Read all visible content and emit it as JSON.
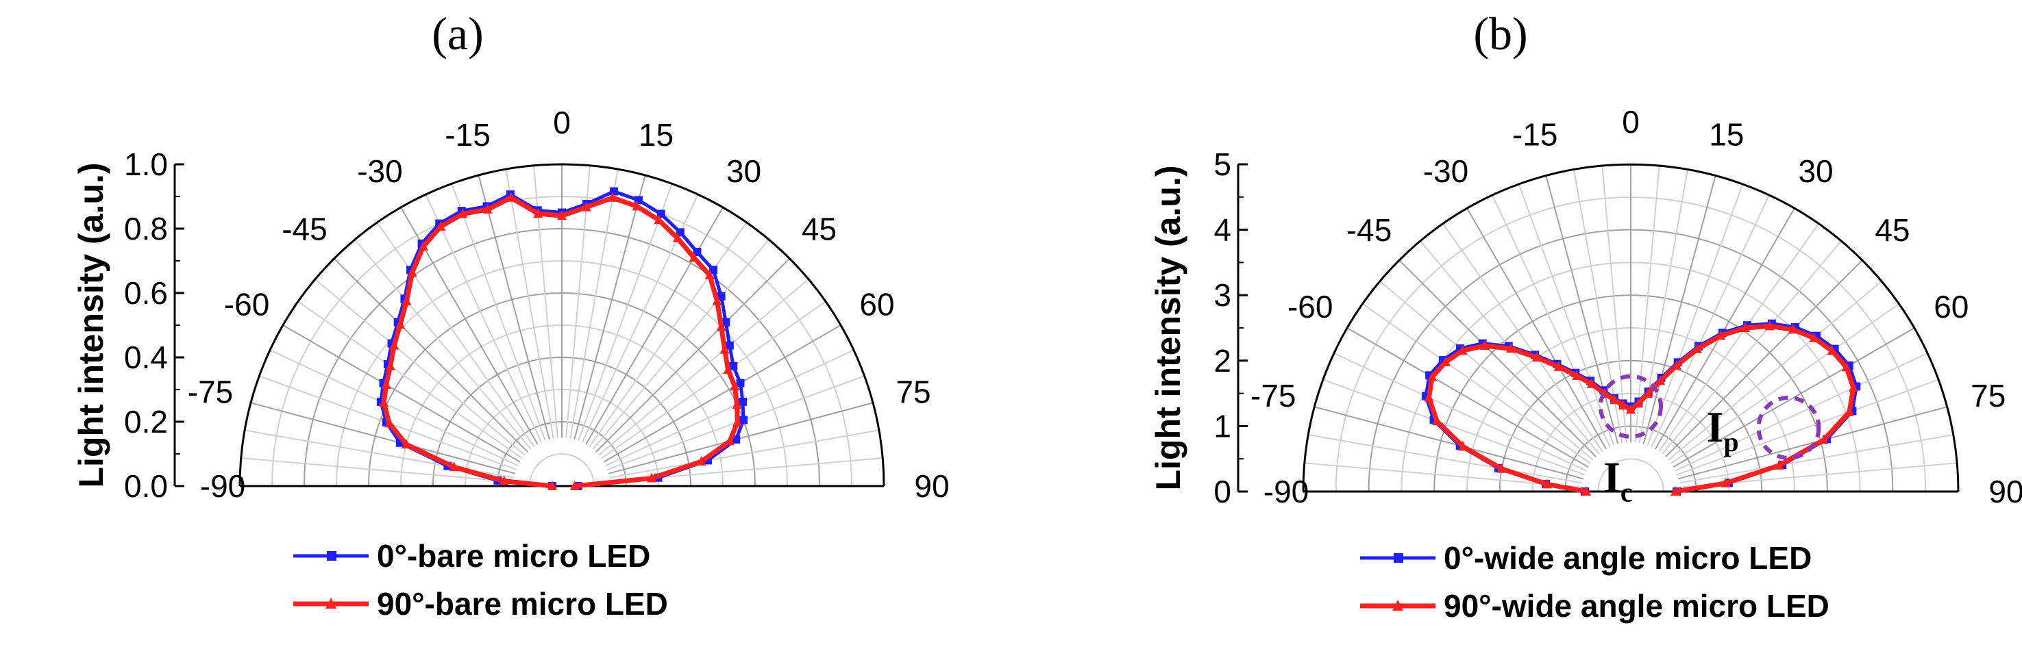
{
  "chart_data": [
    {
      "type": "polar",
      "panel_label": "(a)",
      "ylabel": "Light intensity (a.u.)",
      "radial_ticks": [
        "0.0",
        "0.2",
        "0.4",
        "0.6",
        "0.8",
        "1.0"
      ],
      "rlim": [
        0,
        1.0
      ],
      "angular_ticks": [
        "-90",
        "-75",
        "-60",
        "-45",
        "-30",
        "-15",
        "0",
        "15",
        "30",
        "45",
        "60",
        "75",
        "90"
      ],
      "angle_range_deg": [
        -90,
        90
      ],
      "series": [
        {
          "name": "0°-bare micro LED",
          "color": "#2020ff",
          "marker": "square",
          "angle": [
            -90,
            -85,
            -80,
            -75,
            -70,
            -65,
            -60,
            -55,
            -50,
            -45,
            -40,
            -35,
            -30,
            -25,
            -20,
            -15,
            -10,
            -5,
            0,
            5,
            10,
            15,
            20,
            25,
            30,
            35,
            40,
            45,
            50,
            55,
            60,
            65,
            70,
            75,
            80,
            85,
            90
          ],
          "r": [
            0.03,
            0.2,
            0.36,
            0.52,
            0.58,
            0.62,
            0.64,
            0.66,
            0.69,
            0.72,
            0.76,
            0.82,
            0.87,
            0.9,
            0.91,
            0.9,
            0.92,
            0.86,
            0.85,
            0.88,
            0.93,
            0.92,
            0.9,
            0.87,
            0.84,
            0.82,
            0.77,
            0.72,
            0.68,
            0.65,
            0.64,
            0.62,
            0.6,
            0.56,
            0.46,
            0.3,
            0.05
          ]
        },
        {
          "name": "90°-bare micro LED",
          "color": "#ff2020",
          "marker": "triangle",
          "angle": [
            -90,
            -85,
            -80,
            -75,
            -70,
            -65,
            -60,
            -55,
            -50,
            -45,
            -40,
            -35,
            -30,
            -25,
            -20,
            -15,
            -10,
            -5,
            0,
            5,
            10,
            15,
            20,
            25,
            30,
            35,
            40,
            45,
            50,
            55,
            60,
            65,
            70,
            75,
            80,
            85,
            90
          ],
          "r": [
            0.03,
            0.18,
            0.34,
            0.5,
            0.57,
            0.61,
            0.63,
            0.65,
            0.68,
            0.71,
            0.75,
            0.81,
            0.86,
            0.89,
            0.9,
            0.89,
            0.91,
            0.85,
            0.84,
            0.87,
            0.91,
            0.9,
            0.88,
            0.85,
            0.82,
            0.8,
            0.75,
            0.7,
            0.66,
            0.63,
            0.62,
            0.6,
            0.58,
            0.54,
            0.44,
            0.28,
            0.04
          ]
        }
      ]
    },
    {
      "type": "polar",
      "panel_label": "(b)",
      "ylabel": "Light intensity (a.u.)",
      "radial_ticks": [
        "0",
        "1",
        "2",
        "3",
        "4",
        "5"
      ],
      "rlim": [
        0,
        5
      ],
      "angular_ticks": [
        "-90",
        "-75",
        "-60",
        "-45",
        "-30",
        "-15",
        "0",
        "15",
        "30",
        "45",
        "60",
        "75",
        "90"
      ],
      "angle_range_deg": [
        -90,
        90
      ],
      "annotations": [
        {
          "main": "I",
          "sub": "c",
          "angle": 0,
          "r": 1.3
        },
        {
          "main": "I",
          "sub": "p",
          "angle": 68,
          "r": 2.6
        }
      ],
      "series": [
        {
          "name": "0°-wide angle micro LED",
          "color": "#2020ff",
          "marker": "square",
          "angle": [
            -90,
            -85,
            -80,
            -75,
            -70,
            -65,
            -60,
            -55,
            -50,
            -45,
            -40,
            -35,
            -30,
            -25,
            -20,
            -15,
            -10,
            -5,
            0,
            5,
            10,
            15,
            20,
            25,
            30,
            35,
            40,
            45,
            50,
            55,
            60,
            65,
            70,
            75,
            80,
            85,
            90
          ],
          "r": [
            0.7,
            1.3,
            2.05,
            2.7,
            3.2,
            3.45,
            3.55,
            3.5,
            3.4,
            3.2,
            2.9,
            2.55,
            2.25,
            2.0,
            1.8,
            1.6,
            1.45,
            1.35,
            1.3,
            1.38,
            1.55,
            1.8,
            2.1,
            2.45,
            2.8,
            3.1,
            3.35,
            3.55,
            3.7,
            3.8,
            3.85,
            3.8,
            3.6,
            3.1,
            2.35,
            1.5,
            0.7
          ]
        },
        {
          "name": "90°-wide angle micro LED",
          "color": "#ff2020",
          "marker": "triangle",
          "angle": [
            -90,
            -85,
            -80,
            -75,
            -70,
            -65,
            -60,
            -55,
            -50,
            -45,
            -40,
            -35,
            -30,
            -25,
            -20,
            -15,
            -10,
            -5,
            0,
            5,
            10,
            15,
            20,
            25,
            30,
            35,
            40,
            45,
            50,
            55,
            60,
            65,
            70,
            75,
            80,
            85,
            90
          ],
          "r": [
            0.68,
            1.28,
            2.0,
            2.65,
            3.15,
            3.4,
            3.5,
            3.45,
            3.35,
            3.15,
            2.85,
            2.5,
            2.2,
            1.95,
            1.75,
            1.55,
            1.42,
            1.32,
            1.25,
            1.35,
            1.52,
            1.75,
            2.05,
            2.4,
            2.75,
            3.05,
            3.3,
            3.5,
            3.65,
            3.75,
            3.8,
            3.75,
            3.55,
            3.05,
            2.3,
            1.45,
            0.68
          ]
        }
      ]
    }
  ]
}
